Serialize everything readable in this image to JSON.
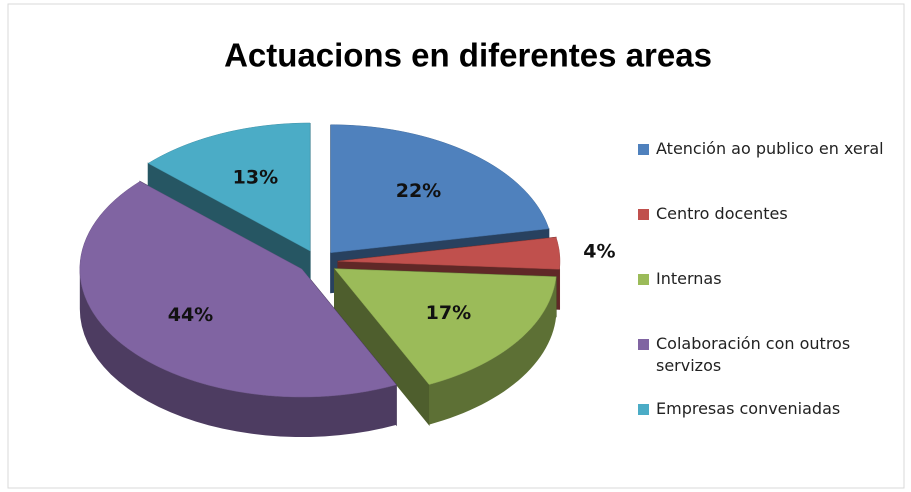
{
  "chart_data": {
    "type": "pie",
    "title": "Actuacions en diferentes areas",
    "categories": [
      "Atención ao publico en xeral",
      "Centro docentes",
      "Internas",
      "Colaboración con outros servizos",
      "Empresas conveniadas"
    ],
    "values": [
      22,
      4,
      17,
      44,
      13
    ],
    "value_labels": [
      "22%",
      "4%",
      "17%",
      "44%",
      "13%"
    ],
    "colors": [
      "#4f81bd",
      "#c0504d",
      "#9bbb59",
      "#8064a2",
      "#4bacc6"
    ],
    "legend": "right"
  }
}
